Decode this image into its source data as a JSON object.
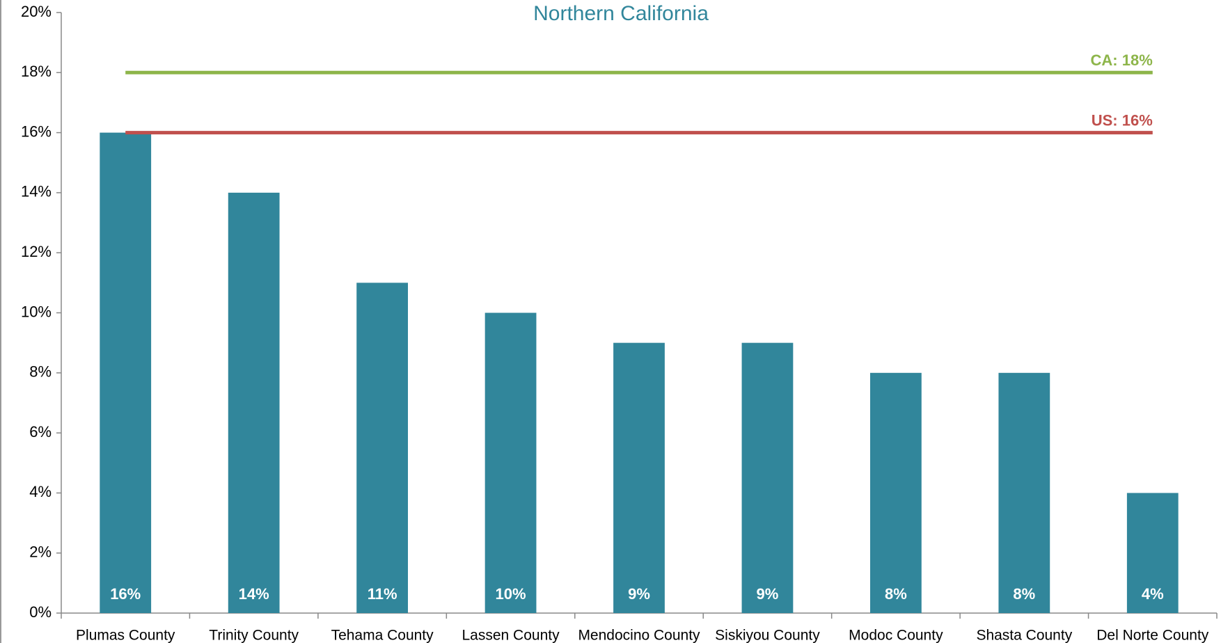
{
  "chart_data": {
    "type": "bar",
    "title": "Northern California",
    "categories": [
      "Plumas County",
      "Trinity County",
      "Tehama County",
      "Lassen County",
      "Mendocino County",
      "Siskiyou County",
      "Modoc County",
      "Shasta County",
      "Del Norte County"
    ],
    "values": [
      16,
      14,
      11,
      10,
      9,
      9,
      8,
      8,
      4
    ],
    "value_labels": [
      "16%",
      "14%",
      "11%",
      "10%",
      "9%",
      "9%",
      "8%",
      "8%",
      "4%"
    ],
    "color": "#31869b",
    "ylim": [
      0,
      20
    ],
    "yticks": [
      {
        "value": 0,
        "label": "0%"
      },
      {
        "value": 2,
        "label": "2%"
      },
      {
        "value": 4,
        "label": "4%"
      },
      {
        "value": 6,
        "label": "6%"
      },
      {
        "value": 8,
        "label": "8%"
      },
      {
        "value": 10,
        "label": "10%"
      },
      {
        "value": 12,
        "label": "12%"
      },
      {
        "value": 14,
        "label": "14%"
      },
      {
        "value": 16,
        "label": "16%"
      },
      {
        "value": 18,
        "label": "18%"
      },
      {
        "value": 20,
        "label": "20%"
      }
    ],
    "grid": false,
    "reference_lines": [
      {
        "value": 18,
        "label": "CA: 18%",
        "color": "#8db54a"
      },
      {
        "value": 16,
        "label": "US: 16%",
        "color": "#c0504d"
      }
    ]
  }
}
